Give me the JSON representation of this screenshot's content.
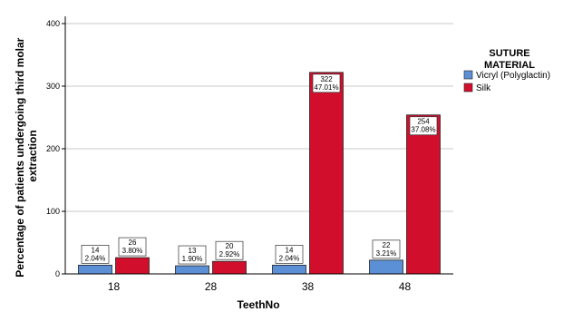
{
  "chart_data": {
    "type": "bar",
    "categories": [
      "18",
      "28",
      "38",
      "48"
    ],
    "series": [
      {
        "name": "Vicryl (Polyglactin)",
        "color": "#5b8fd6",
        "values": [
          14,
          13,
          14,
          22
        ],
        "labels": [
          [
            "14",
            "2.04%"
          ],
          [
            "13",
            "1.90%"
          ],
          [
            "14",
            "2.04%"
          ],
          [
            "22",
            "3.21%"
          ]
        ]
      },
      {
        "name": "Silk",
        "color": "#d10f2c",
        "values": [
          26,
          20,
          322,
          254
        ],
        "labels": [
          [
            "26",
            "3.80%"
          ],
          [
            "20",
            "2.92%"
          ],
          [
            "322",
            "47.01%"
          ],
          [
            "254",
            "37.08%"
          ]
        ]
      }
    ],
    "xlabel": "TeethNo",
    "ylabel": [
      "Percentage of patients undergoing third molar",
      "extraction"
    ],
    "ylim": [
      0,
      400
    ],
    "yticks": [
      "0",
      "100",
      "200",
      "300",
      "400"
    ],
    "grid": "horizontal",
    "legend": {
      "title": [
        "SUTURE",
        "MATERIAL"
      ],
      "position": "right"
    }
  }
}
